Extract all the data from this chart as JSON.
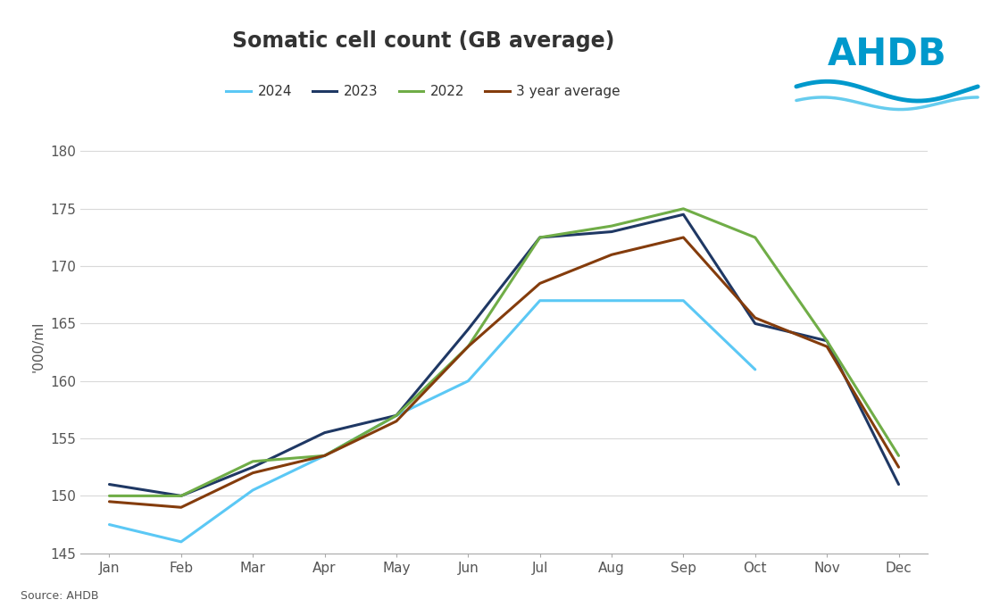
{
  "title": "Somatic cell count (GB average)",
  "ylabel": "'000/ml",
  "source": "Source: AHDB",
  "months": [
    "Jan",
    "Feb",
    "Mar",
    "Apr",
    "May",
    "Jun",
    "Jul",
    "Aug",
    "Sep",
    "Oct",
    "Nov",
    "Dec"
  ],
  "series_2024": [
    147.5,
    146.0,
    150.5,
    153.5,
    157.0,
    160.0,
    167.0,
    167.0,
    167.0,
    161.0,
    null,
    null
  ],
  "series_2023": [
    151.0,
    150.0,
    152.5,
    155.5,
    157.0,
    164.5,
    172.5,
    173.0,
    174.5,
    165.0,
    163.5,
    151.0
  ],
  "series_2022": [
    150.0,
    150.0,
    153.0,
    153.5,
    157.0,
    163.0,
    172.5,
    173.5,
    175.0,
    172.5,
    163.5,
    153.5
  ],
  "series_3yr": [
    149.5,
    149.0,
    152.0,
    153.5,
    156.5,
    163.0,
    168.5,
    171.0,
    172.5,
    165.5,
    163.0,
    152.5
  ],
  "colors": {
    "2024": "#5BC8F5",
    "2023": "#1F3864",
    "2022": "#70AD47",
    "3 year average": "#843C0C"
  },
  "ylim": [
    145,
    181
  ],
  "yticks": [
    145,
    150,
    155,
    160,
    165,
    170,
    175,
    180
  ],
  "background_color": "#FFFFFF",
  "grid_color": "#D9D9D9",
  "title_fontsize": 17,
  "tick_fontsize": 11,
  "label_fontsize": 11,
  "linewidth": 2.2
}
